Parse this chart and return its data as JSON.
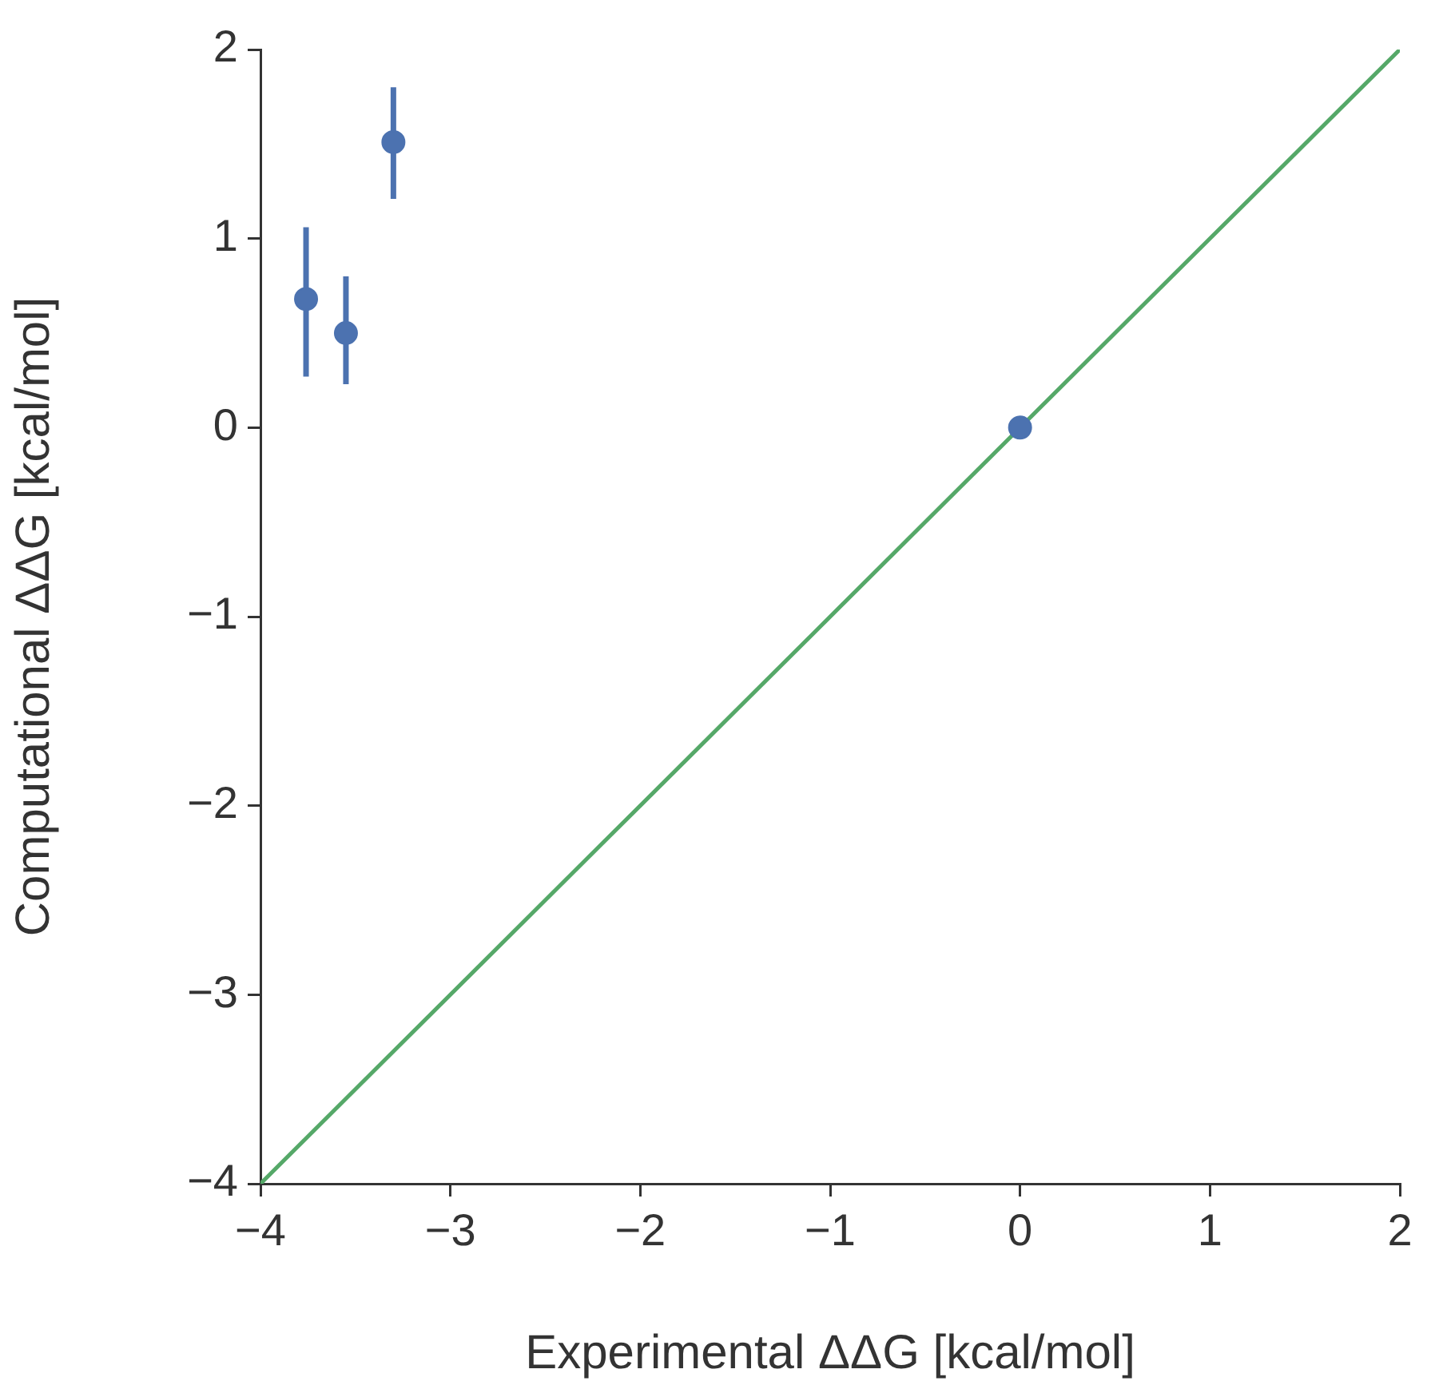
{
  "chart_data": {
    "type": "scatter",
    "xlabel": "Experimental ΔΔG [kcal/mol]",
    "ylabel": "Computational ΔΔG [kcal/mol]",
    "xlim": [
      -4,
      2
    ],
    "ylim": [
      -4,
      2
    ],
    "xticks": [
      -4,
      -3,
      -2,
      -1,
      0,
      1,
      2
    ],
    "yticks": [
      -4,
      -3,
      -2,
      -1,
      0,
      1,
      2
    ],
    "grid": false,
    "marker": "circle",
    "series": [
      {
        "type": "line",
        "color": "#55a868",
        "x": [
          -4,
          2
        ],
        "values": [
          -4,
          2
        ],
        "marker": "none"
      },
      {
        "type": "scatter",
        "color": "#4c72b0",
        "x": [
          -3.76,
          -3.55,
          -3.3,
          0
        ],
        "values": [
          0.68,
          0.5,
          1.51,
          0
        ],
        "errors": [
          [
            0.27,
            1.06
          ],
          [
            0.23,
            0.8
          ],
          [
            1.21,
            1.8
          ],
          null
        ]
      }
    ]
  }
}
